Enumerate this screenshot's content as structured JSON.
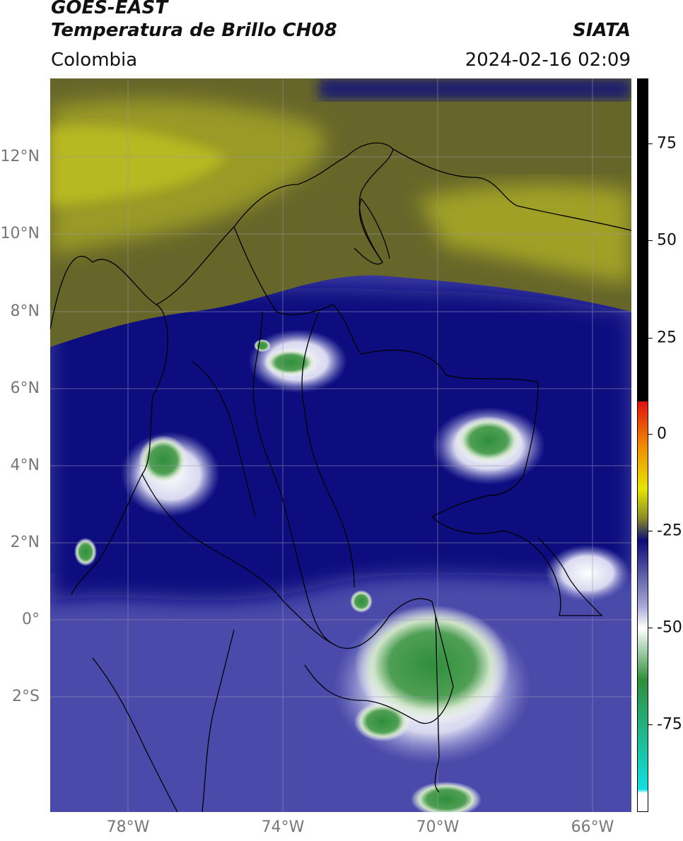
{
  "header": {
    "satellite": "GOES-EAST",
    "product": "Temperatura de Brillo CH08",
    "region": "Colombia",
    "agency": "SIATA",
    "timestamp": "2024-02-16 02:09"
  },
  "map_axes": {
    "lat_labels": [
      "12°N",
      "10°N",
      "8°N",
      "6°N",
      "4°N",
      "2°N",
      "0°",
      "2°S"
    ],
    "lon_labels": [
      "78°W",
      "74°W",
      "70°W",
      "66°W"
    ],
    "gridlines": true
  },
  "colorbar": {
    "tick_labels": [
      "75",
      "50",
      "25",
      "0",
      "-25",
      "-50",
      "-75"
    ],
    "colors": {
      "warm_top": "#000000",
      "red": "#e01010",
      "orange": "#f08a00",
      "yellow": "#e6e600",
      "olive": "#8a8a2a",
      "navy": "#0b0b78",
      "lavender": "#a8a8d8",
      "white": "#ffffff",
      "green": "#2f8f3a",
      "cyan": "#10e0e0"
    }
  }
}
